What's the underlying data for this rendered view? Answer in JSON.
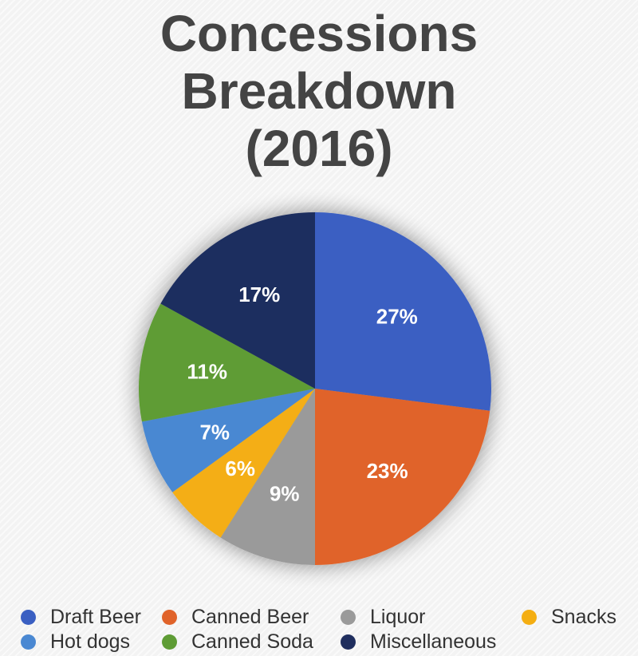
{
  "chart_data": {
    "type": "pie",
    "title_lines": [
      "Concessions",
      "Breakdown",
      "(2016)"
    ],
    "slices": [
      {
        "label": "Draft Beer",
        "value": 27,
        "display": "27%",
        "color": "#3a5fc2"
      },
      {
        "label": "Canned Beer",
        "value": 23,
        "display": "23%",
        "color": "#e0632a"
      },
      {
        "label": "Liquor",
        "value": 9,
        "display": "9%",
        "color": "#9a9a9a"
      },
      {
        "label": "Snacks",
        "value": 6,
        "display": "6%",
        "color": "#f4ae12"
      },
      {
        "label": "Hot dogs",
        "value": 7,
        "display": "7%",
        "color": "#4a88d2"
      },
      {
        "label": "Canned Soda",
        "value": 11,
        "display": "11%",
        "color": "#5e9c35"
      },
      {
        "label": "Miscellaneous",
        "value": 17,
        "display": "17%",
        "color": "#1f2e5e"
      }
    ],
    "legend_position": "bottom",
    "data_labels": "percent"
  },
  "legend": {
    "row1": [
      {
        "label": "Draft Beer",
        "color": "#3a5fc2"
      },
      {
        "label": "Canned Beer",
        "color": "#e0632a"
      },
      {
        "label": "Liquor",
        "color": "#9a9a9a"
      },
      {
        "label": "Snacks",
        "color": "#f4ae12"
      }
    ],
    "row2": [
      {
        "label": "Hot dogs",
        "color": "#4a88d2"
      },
      {
        "label": "Canned Soda",
        "color": "#5e9c35"
      },
      {
        "label": "Miscellaneous",
        "color": "#1f2e5e"
      }
    ]
  }
}
